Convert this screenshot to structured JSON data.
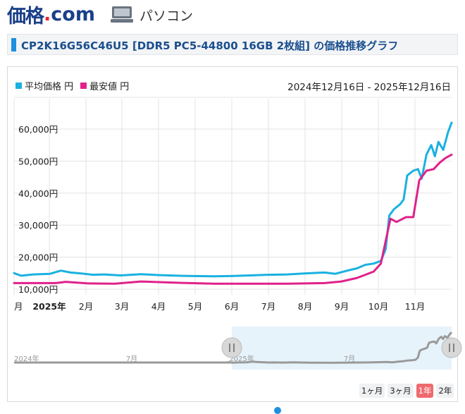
{
  "header": {
    "logo_main": "価格",
    "logo_dot": ".",
    "logo_com": "com",
    "category": "パソコン",
    "category_icon": "laptop-icon"
  },
  "page": {
    "title": "CP2K16G56C46U5 [DDR5 PC5-44800 16GB 2枚組] の価格推移グラフ"
  },
  "legend": {
    "avg_label": "平均価格 円",
    "min_label": "最安値 円",
    "avg_color": "#1ab1e0",
    "min_color": "#e0218a"
  },
  "range_text": "2024年12月16日 - 2025年12月16日",
  "buttons": [
    {
      "label": "1ヶ月",
      "active": false
    },
    {
      "label": "3ヶ月",
      "active": false
    },
    {
      "label": "1年",
      "active": true
    },
    {
      "label": "2年",
      "active": false
    }
  ],
  "chart_data": {
    "type": "line",
    "x_labels": [
      "月",
      "2025年",
      "2月",
      "3月",
      "4月",
      "5月",
      "6月",
      "7月",
      "8月",
      "9月",
      "10月",
      "11月"
    ],
    "y_ticks": [
      "10,000円",
      "20,000円",
      "30,000円",
      "40,000円",
      "50,000円",
      "60,000円"
    ],
    "ylim": [
      10000,
      60000
    ],
    "x_range": [
      "2024-12-16",
      "2025-12-16"
    ],
    "series": [
      {
        "name": "平均価格 円",
        "color": "#1ab1e0",
        "points": [
          [
            "2024-12-16",
            15000
          ],
          [
            "2024-12-22",
            14200
          ],
          [
            "2025-01-01",
            14600
          ],
          [
            "2025-01-15",
            14800
          ],
          [
            "2025-01-24",
            15800
          ],
          [
            "2025-02-01",
            15200
          ],
          [
            "2025-02-10",
            14900
          ],
          [
            "2025-02-20",
            14500
          ],
          [
            "2025-03-01",
            14600
          ],
          [
            "2025-03-15",
            14300
          ],
          [
            "2025-04-01",
            14700
          ],
          [
            "2025-04-15",
            14400
          ],
          [
            "2025-05-01",
            14200
          ],
          [
            "2025-05-15",
            14100
          ],
          [
            "2025-06-01",
            14000
          ],
          [
            "2025-06-15",
            14100
          ],
          [
            "2025-07-01",
            14300
          ],
          [
            "2025-07-15",
            14500
          ],
          [
            "2025-08-01",
            14600
          ],
          [
            "2025-08-15",
            14900
          ],
          [
            "2025-09-01",
            15200
          ],
          [
            "2025-09-10",
            14800
          ],
          [
            "2025-09-20",
            15800
          ],
          [
            "2025-09-28",
            16500
          ],
          [
            "2025-10-05",
            17600
          ],
          [
            "2025-10-12",
            18000
          ],
          [
            "2025-10-18",
            18800
          ],
          [
            "2025-10-22",
            22500
          ],
          [
            "2025-10-25",
            33000
          ],
          [
            "2025-10-29",
            35000
          ],
          [
            "2025-11-03",
            36500
          ],
          [
            "2025-11-06",
            38000
          ],
          [
            "2025-11-09",
            45500
          ],
          [
            "2025-11-14",
            47000
          ],
          [
            "2025-11-18",
            47500
          ],
          [
            "2025-11-21",
            44500
          ],
          [
            "2025-11-25",
            52000
          ],
          [
            "2025-11-29",
            55000
          ],
          [
            "2025-12-02",
            51500
          ],
          [
            "2025-12-05",
            56000
          ],
          [
            "2025-12-09",
            53500
          ],
          [
            "2025-12-13",
            59000
          ],
          [
            "2025-12-16",
            62000
          ]
        ]
      },
      {
        "name": "最安値 円",
        "color": "#e0218a",
        "points": [
          [
            "2024-12-16",
            11900
          ],
          [
            "2025-01-20",
            11900
          ],
          [
            "2025-01-28",
            12300
          ],
          [
            "2025-02-15",
            11800
          ],
          [
            "2025-03-10",
            11700
          ],
          [
            "2025-04-01",
            12400
          ],
          [
            "2025-05-01",
            12000
          ],
          [
            "2025-06-01",
            11700
          ],
          [
            "2025-07-01",
            11700
          ],
          [
            "2025-08-01",
            11700
          ],
          [
            "2025-09-01",
            11900
          ],
          [
            "2025-09-15",
            12400
          ],
          [
            "2025-09-28",
            13500
          ],
          [
            "2025-10-05",
            14500
          ],
          [
            "2025-10-12",
            15500
          ],
          [
            "2025-10-18",
            18000
          ],
          [
            "2025-10-26",
            32000
          ],
          [
            "2025-10-31",
            31000
          ],
          [
            "2025-11-08",
            32500
          ],
          [
            "2025-11-14",
            32500
          ],
          [
            "2025-11-19",
            44000
          ],
          [
            "2025-11-25",
            47000
          ],
          [
            "2025-12-01",
            47500
          ],
          [
            "2025-12-06",
            49500
          ],
          [
            "2025-12-11",
            51000
          ],
          [
            "2025-12-16",
            52000
          ]
        ]
      }
    ]
  },
  "navigator": {
    "x_labels": [
      "2024年",
      "7月",
      "2025年",
      "7月"
    ],
    "x_range": [
      "2024-01-01",
      "2025-12-16"
    ],
    "line_color": "#9a9a9a",
    "shade_color": "#e6f3fb"
  }
}
